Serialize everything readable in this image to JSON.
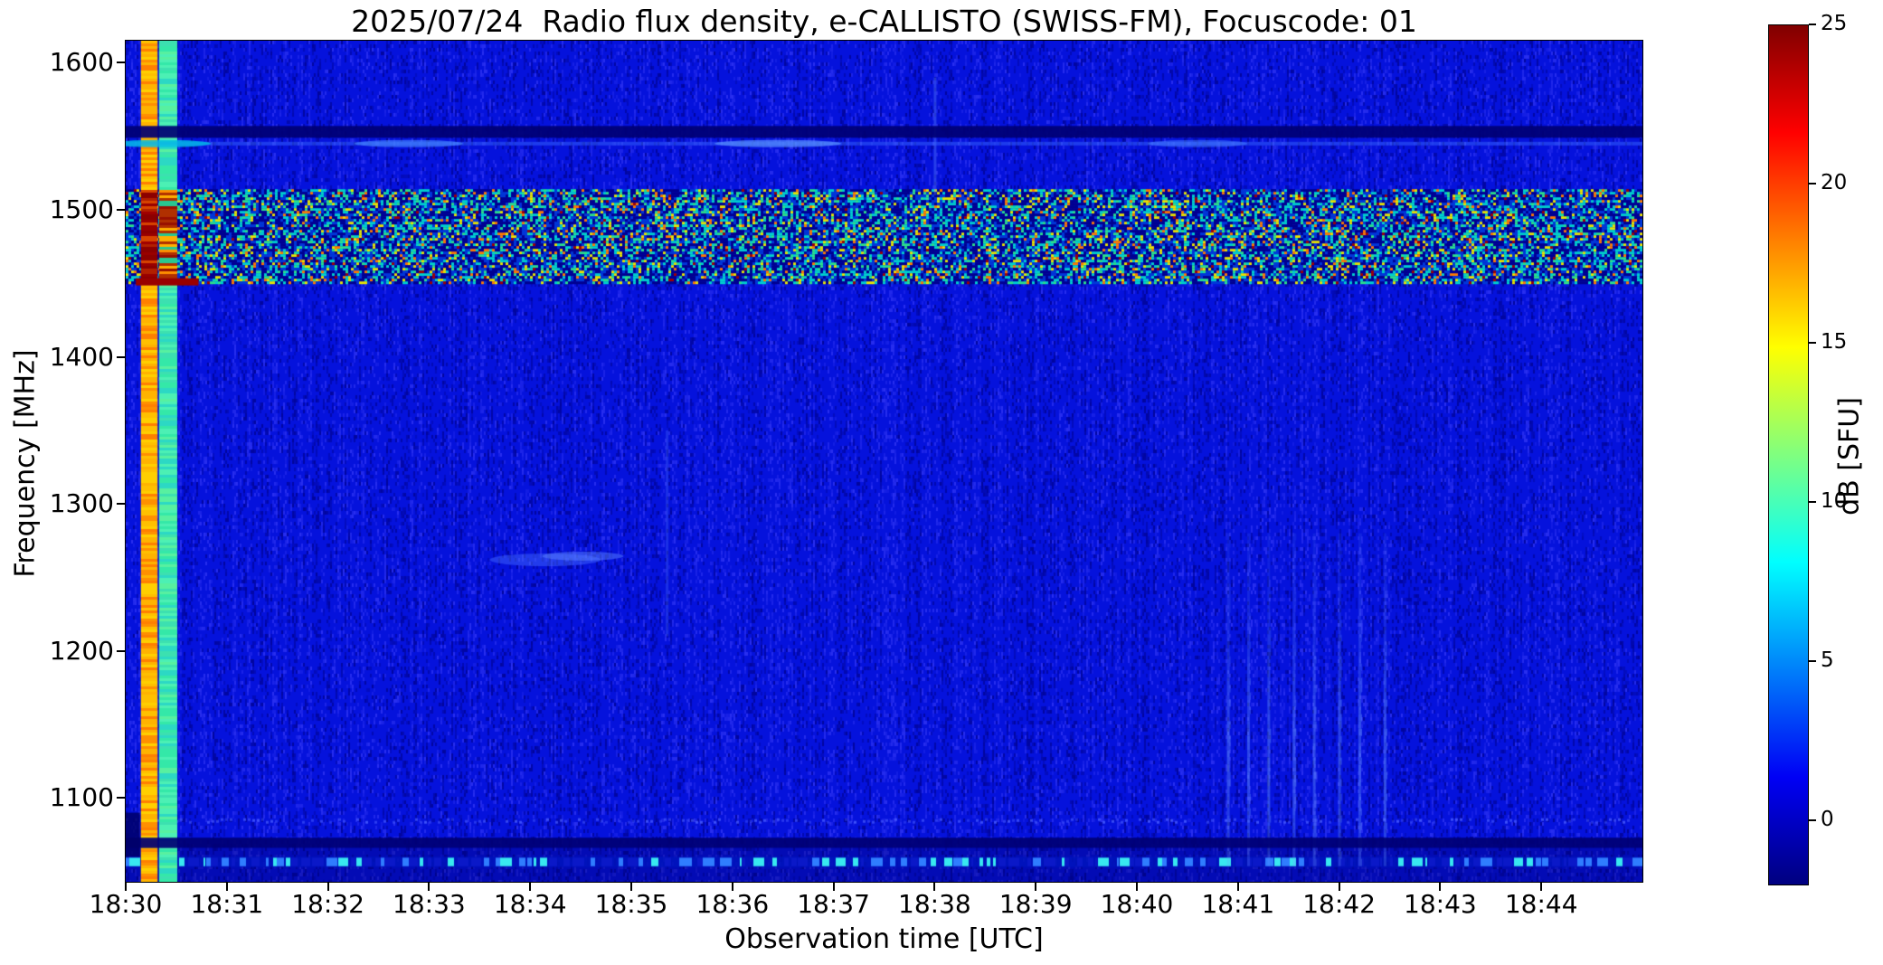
{
  "chart_data": {
    "type": "heatmap",
    "title": "2025/07/24  Radio flux density, e-CALLISTO (SWISS-FM), Focuscode: 01",
    "xlabel": "Observation time [UTC]",
    "ylabel": "Frequency [MHz]",
    "colorbar_label": "dB [SFU]",
    "x_tick_labels": [
      "18:30",
      "18:31",
      "18:32",
      "18:33",
      "18:34",
      "18:35",
      "18:36",
      "18:37",
      "18:38",
      "18:39",
      "18:40",
      "18:41",
      "18:42",
      "18:43",
      "18:44"
    ],
    "x_range_minutes": [
      0,
      15
    ],
    "x_start_time": "18:30",
    "x_end_time": "18:45",
    "y_tick_labels": [
      1600,
      1500,
      1400,
      1300,
      1200,
      1100
    ],
    "y_range_mhz": [
      1043,
      1615
    ],
    "colorbar_tick_labels": [
      25,
      20,
      15,
      10,
      5,
      0
    ],
    "colorbar_range_db": [
      -2,
      25
    ],
    "colormap": "jet",
    "colormap_stops": [
      "#000080",
      "#0000ff",
      "#00ffff",
      "#ffff00",
      "#ff0000",
      "#800000"
    ],
    "background": {
      "base_color": "#0512dc",
      "dark_noise_color": "#000082",
      "light_noise_color": "#4646ff",
      "mean_level_db": 2
    },
    "features": [
      {
        "name": "calibration-stripe-warm",
        "t_min": 0.15,
        "t_max": 0.315,
        "f_min": 1043,
        "f_max": 1615,
        "level_db": 17,
        "colors": [
          "#ff9000",
          "#ffb300",
          "#ffcf00",
          "#ff8000",
          "#ffc000"
        ],
        "rfi_colors": [
          "#8b0000",
          "#990000",
          "#8b0000",
          "#b22000",
          "#d84400",
          "#8b0000",
          "#a00000"
        ]
      },
      {
        "name": "calibration-stripe-cool",
        "t_min": 0.33,
        "t_max": 0.51,
        "f_min": 1043,
        "f_max": 1615,
        "level_db": 11,
        "colors": [
          "#34e8a8",
          "#4cf0b4",
          "#2cd8c4",
          "#58f0a0",
          "#3ce0b0"
        ],
        "rfi_colors": [
          "#e06000",
          "#ff9000",
          "#b03000",
          "#28c890",
          "#ffb000",
          "#981000"
        ]
      },
      {
        "name": "rfi-speckle-band",
        "f_min": 1451,
        "f_max": 1514,
        "t_min": 0,
        "t_max": 15,
        "level_db": "0-25 speckled"
      },
      {
        "name": "dark-band",
        "f_min": 1549,
        "f_max": 1557,
        "t_min": 0,
        "t_max": 15,
        "level_db": -1
      },
      {
        "name": "faint-bright-line",
        "f": 1545,
        "t_min": 0,
        "t_max": 15,
        "level_db": 5
      },
      {
        "name": "red-line-1451",
        "f": 1451,
        "t_min": 0.1,
        "t_max": 0.72,
        "level_db": 24
      },
      {
        "name": "speckle-row-1085",
        "f": 1085,
        "t_min": 0,
        "t_max": 15,
        "level_db": 4
      },
      {
        "name": "dark-row",
        "f_min": 1066,
        "f_max": 1073,
        "t_min": 0,
        "t_max": 15,
        "level_db": -1
      },
      {
        "name": "bright-dash-row",
        "f_min": 1053,
        "f_max": 1060,
        "t_min": 0,
        "t_max": 15,
        "level_db": 9
      },
      {
        "name": "vertical-streaks",
        "t_list_min": [
          10.9,
          11.1,
          11.3,
          11.55,
          11.75,
          12.0,
          12.2,
          12.45
        ],
        "f_min": 1080,
        "f_max": 1280,
        "level_db": 6
      },
      {
        "name": "blue-smudge",
        "t_min": 3.6,
        "t_max": 4.7,
        "f": 1262,
        "level_db": 5
      },
      {
        "name": "faint-vline",
        "t": 5.35,
        "f_min": 1210,
        "f_max": 1350,
        "level_db": 4
      },
      {
        "name": "faint-vline-top",
        "t": 8.0,
        "f_min": 1510,
        "f_max": 1590,
        "level_db": 5
      }
    ]
  }
}
